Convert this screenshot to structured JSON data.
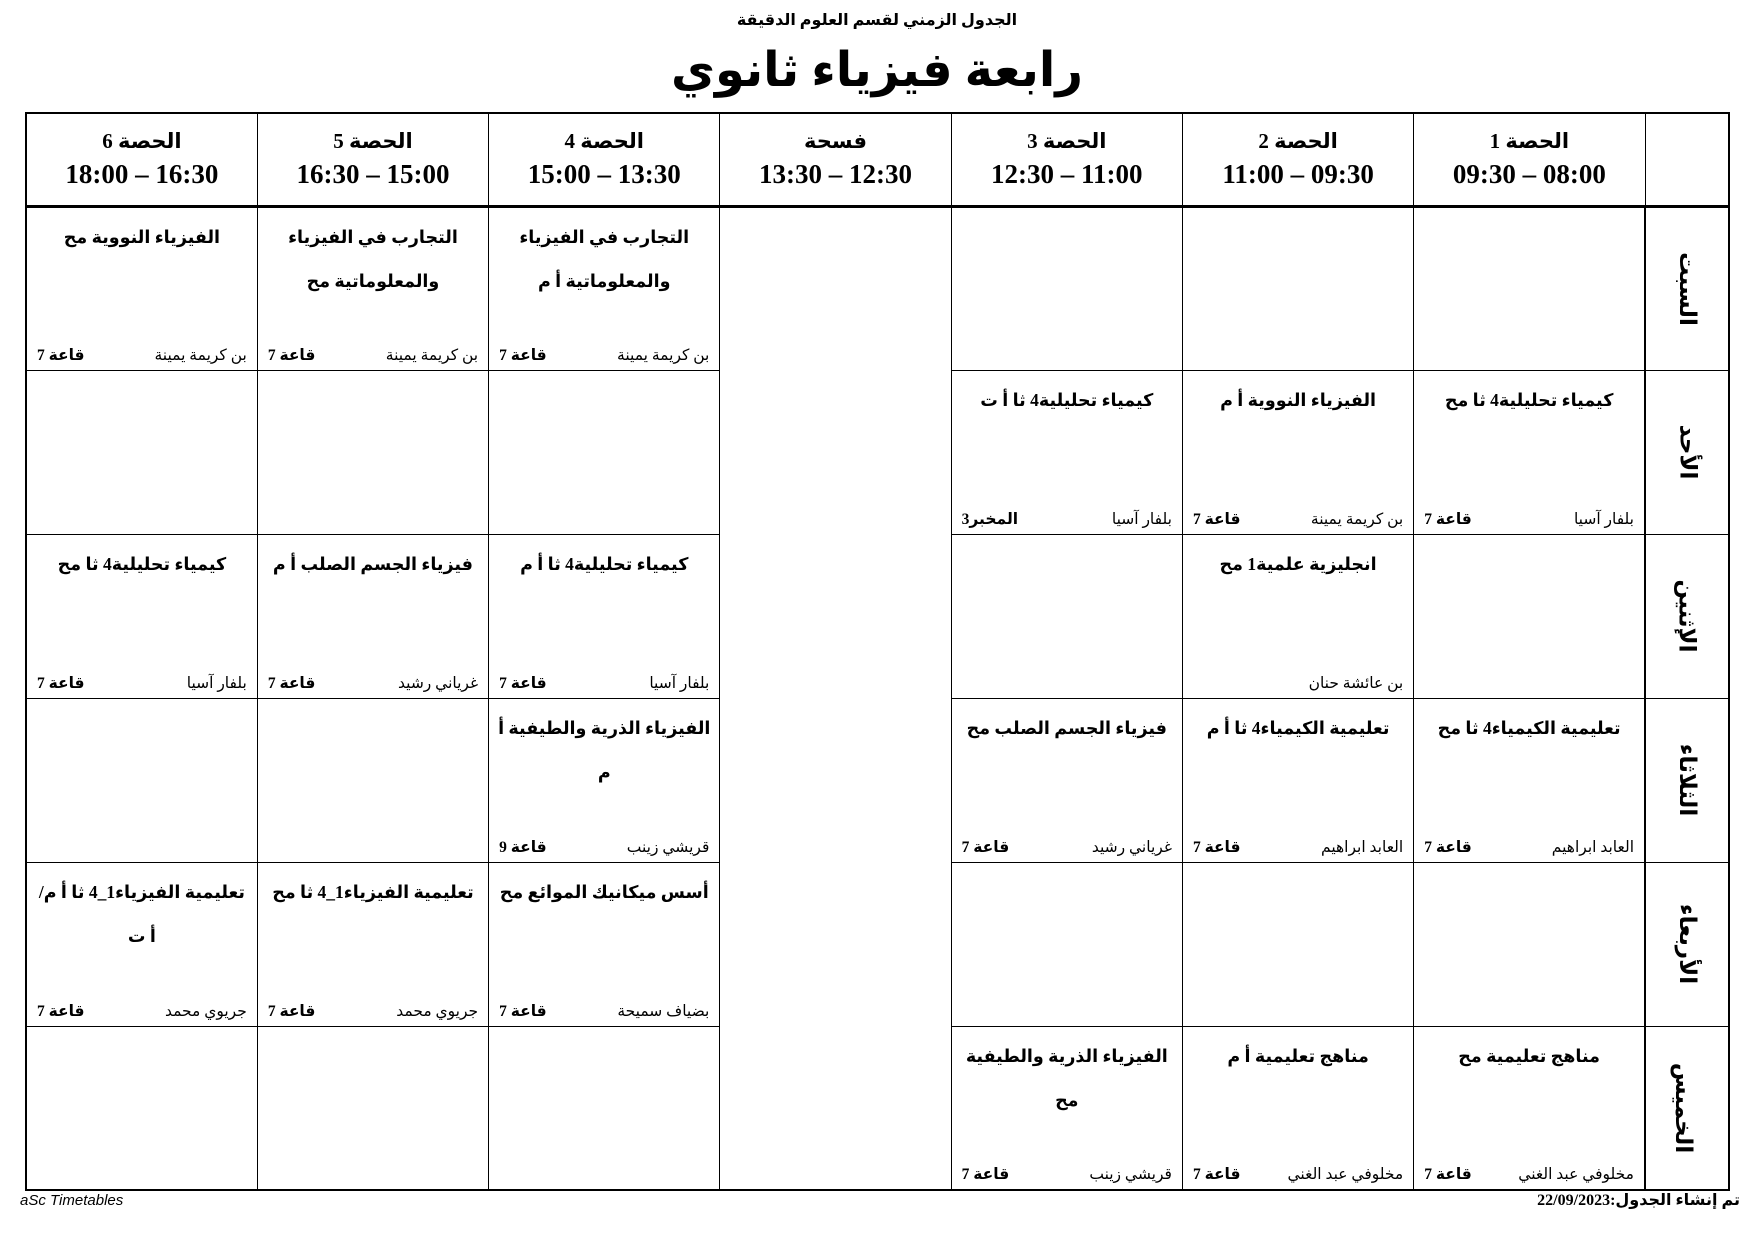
{
  "header": {
    "department_title": "الجدول الزمني لقسم العلوم الدقيقة",
    "class_title": "رابعة فيزياء ثانوي"
  },
  "periods": [
    {
      "label": "الحصة 1",
      "time": "08:00 – 09:30"
    },
    {
      "label": "الحصة 2",
      "time": "09:30 – 11:00"
    },
    {
      "label": "الحصة 3",
      "time": "11:00 – 12:30"
    },
    {
      "label": "فسحة",
      "time": "12:30 – 13:30"
    },
    {
      "label": "الحصة 4",
      "time": "13:30 – 15:00"
    },
    {
      "label": "الحصة 5",
      "time": "15:00 – 16:30"
    },
    {
      "label": "الحصة 6",
      "time": "16:30 – 18:00"
    }
  ],
  "days": [
    {
      "name": "السبت",
      "cells": [
        null,
        null,
        null,
        {
          "subject": "التجارب في الفيزياء والمعلوماتية أ م",
          "teacher": "بن كريمة يمينة",
          "room": "قاعة 7"
        },
        {
          "subject": "التجارب في الفيزياء والمعلوماتية مح",
          "teacher": "بن كريمة يمينة",
          "room": "قاعة 7"
        },
        {
          "subject": "الفيزياء النووية مح",
          "teacher": "بن كريمة يمينة",
          "room": "قاعة 7"
        }
      ]
    },
    {
      "name": "الأحد",
      "cells": [
        {
          "subject": "كيمياء تحليلية4 ثا مح",
          "teacher": "بلفار آسيا",
          "room": "قاعة 7"
        },
        {
          "subject": "الفيزياء النووية أ م",
          "teacher": "بن كريمة يمينة",
          "room": "قاعة 7"
        },
        {
          "subject": "كيمياء تحليلية4 ثا أ ت",
          "teacher": "بلفار آسيا",
          "room": "المخبر3"
        },
        null,
        null,
        null
      ]
    },
    {
      "name": "الإثنين",
      "cells": [
        null,
        {
          "subject": "انجليزية علمية1 مح",
          "teacher": "بن عائشة حنان",
          "room": ""
        },
        null,
        {
          "subject": "كيمياء تحليلية4 ثا أ م",
          "teacher": "بلفار آسيا",
          "room": "قاعة 7"
        },
        {
          "subject": "فيزياء الجسم الصلب أ م",
          "teacher": "غرياني رشيد",
          "room": "قاعة 7"
        },
        {
          "subject": "كيمياء تحليلية4 ثا مح",
          "teacher": "بلفار آسيا",
          "room": "قاعة 7"
        }
      ]
    },
    {
      "name": "الثلاثاء",
      "cells": [
        {
          "subject": "تعليمية الكيمياء4 ثا مح",
          "teacher": "العابد ابراهيم",
          "room": "قاعة 7"
        },
        {
          "subject": "تعليمية الكيمياء4 ثا أ م",
          "teacher": "العابد ابراهيم",
          "room": "قاعة 7"
        },
        {
          "subject": "فيزياء الجسم الصلب مح",
          "teacher": "غرياني رشيد",
          "room": "قاعة 7"
        },
        {
          "subject": "الفيزياء الذرية والطيفية أ م",
          "teacher": "قريشي زينب",
          "room": "قاعة 9"
        },
        null,
        null
      ]
    },
    {
      "name": "الأربعاء",
      "cells": [
        null,
        null,
        null,
        {
          "subject": "أسس ميكانيك الموائع مح",
          "teacher": "بضياف سميحة",
          "room": "قاعة 7"
        },
        {
          "subject": "تعليمية الفيزياء1_4 ثا مح",
          "teacher": "جريوي محمد",
          "room": "قاعة 7"
        },
        {
          "subject": "تعليمية الفيزياء1_4 ثا أ م/ أ ت",
          "teacher": "جريوي محمد",
          "room": "قاعة 7"
        }
      ]
    },
    {
      "name": "الخميس",
      "cells": [
        {
          "subject": "مناهج تعليمية مح",
          "teacher": "مخلوفي عبد الغني",
          "room": "قاعة 7"
        },
        {
          "subject": "مناهج تعليمية أ م",
          "teacher": "مخلوفي عبد الغني",
          "room": "قاعة 7"
        },
        {
          "subject": "الفيزياء الذرية والطيفية مح",
          "teacher": "قريشي زينب",
          "room": "قاعة 7"
        },
        null,
        null,
        null
      ]
    }
  ],
  "footer": {
    "left": "aSc Timetables",
    "right": "تم إنشاء الجدول:22/09/2023"
  }
}
